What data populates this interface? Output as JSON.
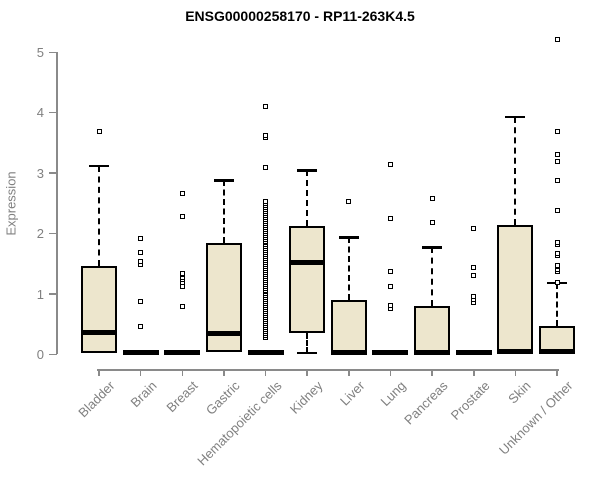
{
  "colors": {
    "box_fill": "#EDE6CD",
    "box_border": "#000000",
    "axis": "#8A8A8A",
    "gray_text": "#808080",
    "title_text": "#000000",
    "background": "#FFFFFF"
  },
  "chart_data": {
    "type": "boxplot",
    "title": "ENSG00000258170 - RP11-263K4.5",
    "xlabel": "",
    "ylabel": "Expression",
    "ylim": [
      0,
      5
    ],
    "y_ticks": [
      0,
      1,
      2,
      3,
      4,
      5
    ],
    "grid": "off",
    "legend": "none",
    "categories": [
      "Bladder",
      "Brain",
      "Breast",
      "Gastric",
      "Hematopoietic cells",
      "Kidney",
      "Liver",
      "Lung",
      "Pancreas",
      "Prostate",
      "Skin",
      "Unknown / Other"
    ],
    "series": [
      {
        "name": "Bladder",
        "q1": 0.02,
        "median": 0.35,
        "q3": 1.45,
        "whisker_high": 3.12,
        "whisker_low": null,
        "outliers": [
          3.68
        ]
      },
      {
        "name": "Brain",
        "q1": 0.0,
        "median": 0.02,
        "q3": 0.05,
        "whisker_high": null,
        "whisker_low": null,
        "outliers": [
          0.45,
          0.87,
          1.48,
          1.53,
          1.68,
          1.91
        ]
      },
      {
        "name": "Breast",
        "q1": 0.0,
        "median": 0.02,
        "q3": 0.05,
        "whisker_high": null,
        "whisker_low": null,
        "outliers": [
          0.78,
          1.11,
          1.19,
          1.23,
          1.27,
          1.31,
          1.34,
          2.28,
          2.65
        ]
      },
      {
        "name": "Gastric",
        "q1": 0.03,
        "median": 0.34,
        "q3": 1.83,
        "whisker_high": 2.88,
        "whisker_low": null,
        "outliers": []
      },
      {
        "name": "Hematopoietic cells",
        "q1": 0.0,
        "median": 0.02,
        "q3": 0.05,
        "whisker_high": null,
        "whisker_low": null,
        "outliers": [
          3.08,
          3.58,
          3.62,
          4.1
        ],
        "outliers_dense": {
          "from": 0.28,
          "to": 2.52,
          "count": 70
        }
      },
      {
        "name": "Kidney",
        "q1": 0.34,
        "median": 1.52,
        "q3": 2.12,
        "whisker_high": 3.04,
        "whisker_low": 0.02,
        "outliers": []
      },
      {
        "name": "Liver",
        "q1": 0.01,
        "median": 0.03,
        "q3": 0.9,
        "whisker_high": 1.93,
        "whisker_low": null,
        "outliers": [
          2.53
        ]
      },
      {
        "name": "Lung",
        "q1": 0.0,
        "median": 0.02,
        "q3": 0.05,
        "whisker_high": null,
        "whisker_low": null,
        "outliers": [
          0.76,
          0.8,
          1.12,
          1.37,
          2.24,
          3.13
        ]
      },
      {
        "name": "Pancreas",
        "q1": 0.01,
        "median": 0.03,
        "q3": 0.79,
        "whisker_high": 1.77,
        "whisker_low": null,
        "outliers": [
          2.18,
          2.57
        ]
      },
      {
        "name": "Prostate",
        "q1": 0.0,
        "median": 0.02,
        "q3": 0.05,
        "whisker_high": null,
        "whisker_low": null,
        "outliers": [
          0.85,
          0.9,
          0.95,
          1.3,
          1.43,
          2.08
        ]
      },
      {
        "name": "Skin",
        "q1": 0.01,
        "median": 0.04,
        "q3": 2.13,
        "whisker_high": 3.93,
        "whisker_low": null,
        "outliers": []
      },
      {
        "name": "Unknown / Other",
        "q1": 0.01,
        "median": 0.04,
        "q3": 0.46,
        "whisker_high": 1.18,
        "whisker_low": null,
        "outliers": [
          1.18,
          1.37,
          1.4,
          1.45,
          1.47,
          1.63,
          1.66,
          1.82,
          1.85,
          2.38,
          2.88,
          3.18,
          3.31,
          3.68,
          5.2
        ]
      }
    ]
  }
}
